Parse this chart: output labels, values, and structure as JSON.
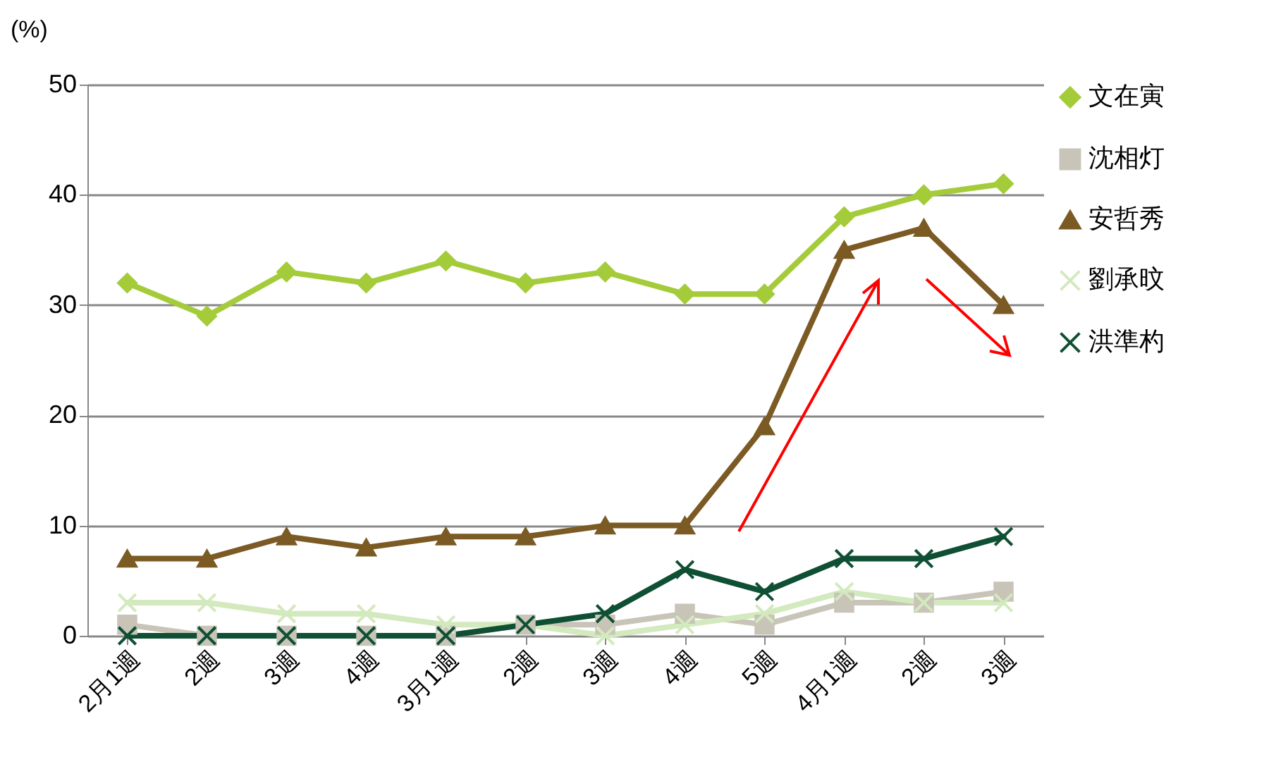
{
  "chart_data": {
    "type": "line",
    "ylabel": "(%)",
    "categories": [
      "2月1週",
      "2週",
      "3週",
      "4週",
      "3月1週",
      "2週",
      "3週",
      "4週",
      "5週",
      "4月1週",
      "2週",
      "3週"
    ],
    "series": [
      {
        "name": "文在寅",
        "color": "#a4cc3a",
        "marker": "diamond",
        "values": [
          32,
          29,
          33,
          32,
          34,
          32,
          33,
          31,
          31,
          38,
          40,
          41
        ]
      },
      {
        "name": "沈相灯",
        "color": "#c8c4b8",
        "marker": "square",
        "values": [
          1,
          0,
          0,
          0,
          0,
          1,
          1,
          2,
          1,
          3,
          3,
          4
        ]
      },
      {
        "name": "安哲秀",
        "color": "#7b5a24",
        "marker": "triangle",
        "values": [
          7,
          7,
          9,
          8,
          9,
          9,
          10,
          10,
          19,
          35,
          37,
          30
        ]
      },
      {
        "name": "劉承旼",
        "color": "#d3e9be",
        "marker": "cross",
        "values": [
          3,
          3,
          2,
          2,
          1,
          1,
          0,
          1,
          2,
          4,
          3,
          3
        ]
      },
      {
        "name": "洪準杓",
        "color": "#0f4f33",
        "marker": "cross",
        "values": [
          0,
          0,
          0,
          0,
          0,
          1,
          2,
          6,
          4,
          7,
          7,
          9
        ]
      }
    ],
    "ylim": [
      0,
      50
    ],
    "yticks": [
      0,
      10,
      20,
      30,
      40,
      50
    ],
    "grid": "y",
    "legend": "right",
    "line_style": "solid"
  }
}
